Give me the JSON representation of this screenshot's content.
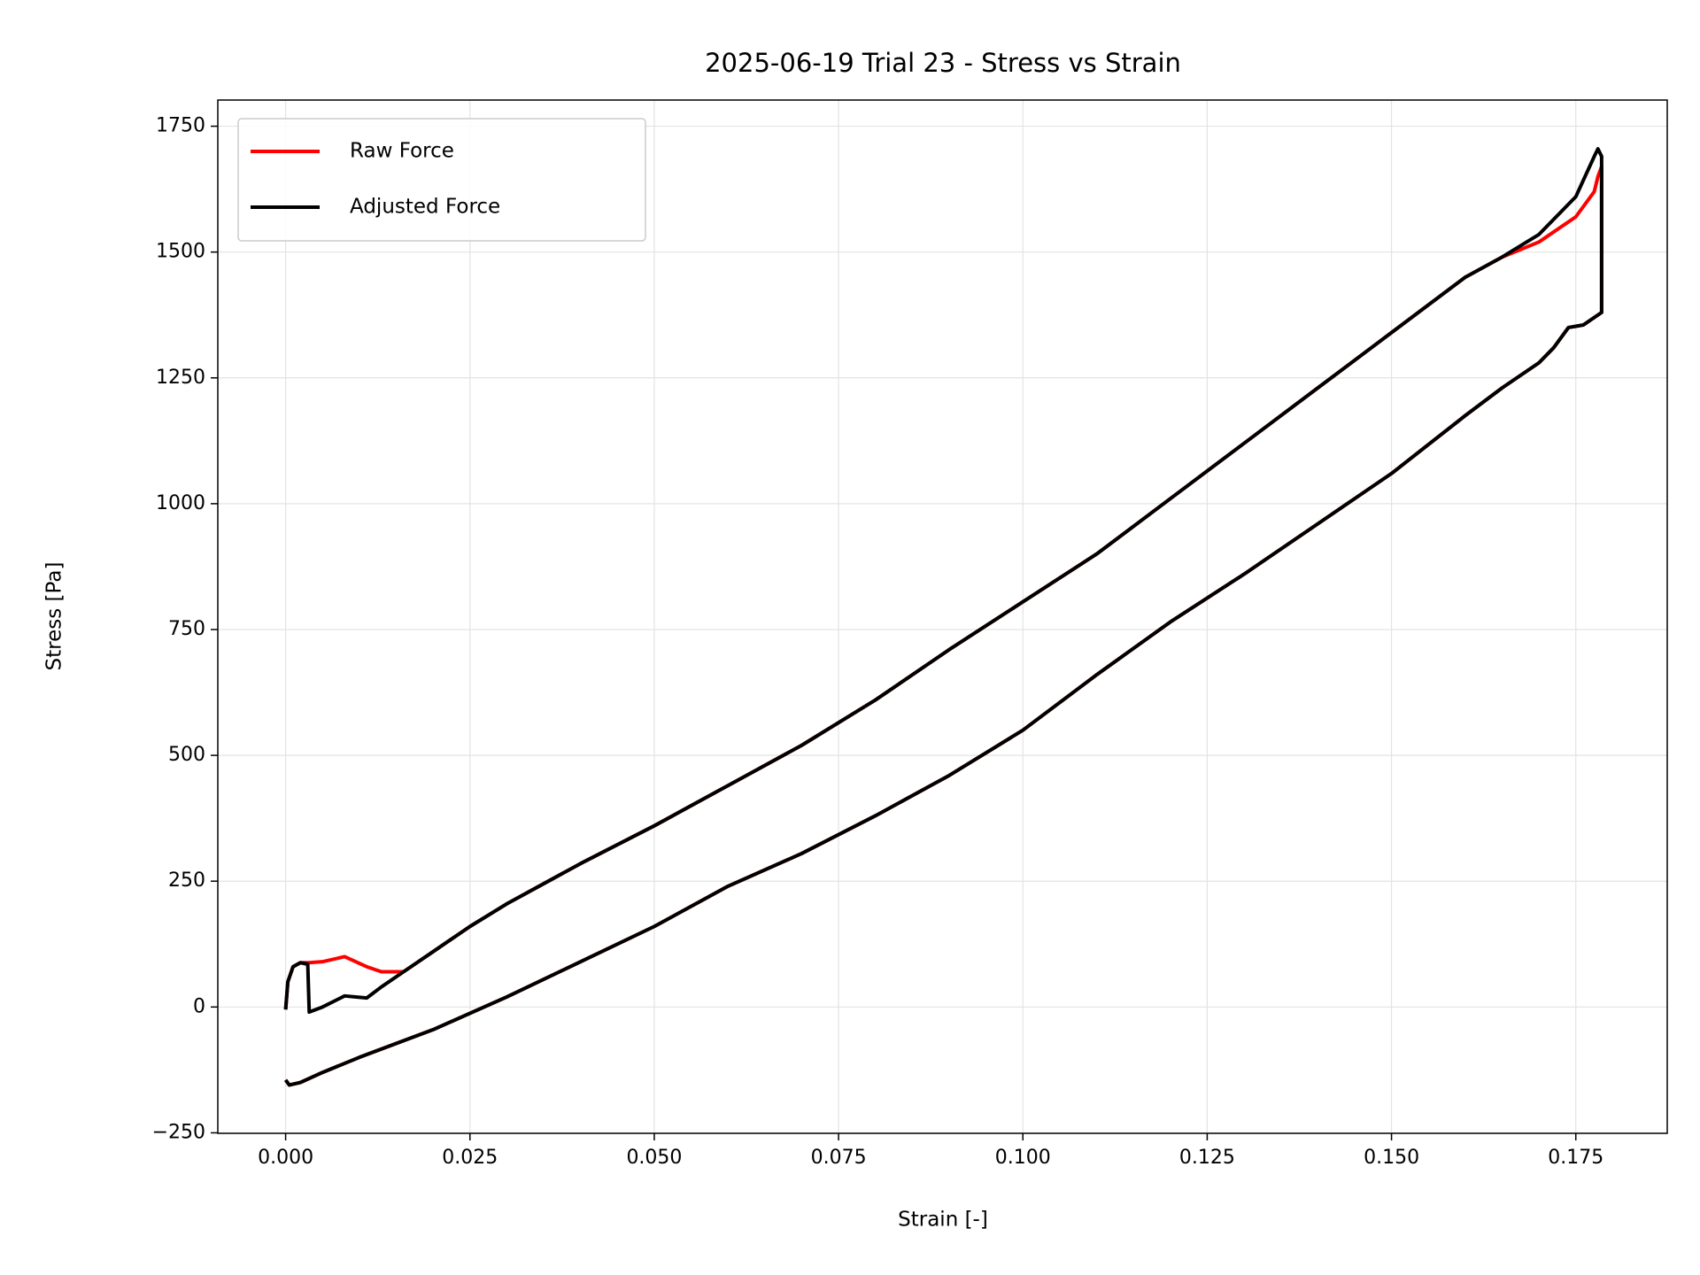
{
  "chart_data": {
    "type": "line",
    "title": "2025-06-19 Trial 23 - Stress vs Strain",
    "xlabel": "Strain [-]",
    "ylabel": "Stress [Pa]",
    "x": [
      0,
      0.0003,
      0.001,
      0.002,
      0.003,
      0.0032,
      0.005,
      0.008,
      0.011,
      0.013,
      0.016,
      0.02,
      0.025,
      0.03,
      0.035,
      0.04,
      0.05,
      0.06,
      0.07,
      0.08,
      0.09,
      0.1,
      0.11,
      0.12,
      0.13,
      0.14,
      0.15,
      0.16,
      0.165,
      0.17,
      0.175,
      0.1775,
      0.178,
      0.1785,
      0.1785,
      0.178,
      0.176,
      0.174,
      0.172,
      0.17,
      0.165,
      0.16,
      0.15,
      0.14,
      0.13,
      0.12,
      0.11,
      0.1,
      0.09,
      0.08,
      0.07,
      0.06,
      0.05,
      0.04,
      0.03,
      0.02,
      0.01,
      0.005,
      0.002,
      0.0005,
      0
    ],
    "series": [
      {
        "name": "Raw Force",
        "color": "#ff0000",
        "values": [
          -5,
          50,
          80,
          88,
          88,
          88,
          90,
          100,
          80,
          70,
          70,
          110,
          160,
          205,
          245,
          285,
          360,
          440,
          520,
          610,
          710,
          805,
          900,
          1010,
          1120,
          1230,
          1340,
          1450,
          1490,
          1520,
          1570,
          1620,
          1650,
          1670,
          1380,
          1375,
          1355,
          1350,
          1310,
          1280,
          1230,
          1175,
          1060,
          960,
          860,
          765,
          660,
          550,
          460,
          380,
          305,
          240,
          160,
          90,
          20,
          -45,
          -100,
          -130,
          -150,
          -155,
          -145
        ]
      },
      {
        "name": "Adjusted Force",
        "color": "#000000",
        "values": [
          -5,
          50,
          80,
          88,
          85,
          -10,
          0,
          22,
          18,
          40,
          70,
          110,
          160,
          205,
          245,
          285,
          360,
          440,
          520,
          610,
          710,
          805,
          900,
          1010,
          1120,
          1230,
          1340,
          1450,
          1490,
          1535,
          1610,
          1690,
          1705,
          1690,
          1380,
          1375,
          1355,
          1350,
          1310,
          1280,
          1230,
          1175,
          1060,
          960,
          860,
          765,
          660,
          550,
          460,
          380,
          305,
          240,
          160,
          90,
          20,
          -45,
          -100,
          -130,
          -150,
          -155,
          -145
        ]
      }
    ],
    "xlim": [
      -0.0092,
      0.1874
    ],
    "ylim": [
      -251,
      1802
    ],
    "xticks": [
      {
        "value": 0,
        "label": "0.000"
      },
      {
        "value": 0.025,
        "label": "0.025"
      },
      {
        "value": 0.05,
        "label": "0.050"
      },
      {
        "value": 0.075,
        "label": "0.075"
      },
      {
        "value": 0.1,
        "label": "0.100"
      },
      {
        "value": 0.125,
        "label": "0.125"
      },
      {
        "value": 0.15,
        "label": "0.150"
      },
      {
        "value": 0.175,
        "label": "0.175"
      }
    ],
    "yticks": [
      {
        "value": -250,
        "label": "−250"
      },
      0,
      250,
      500,
      750,
      1000,
      1250,
      1500,
      1750
    ],
    "grid": true,
    "legend": "upper left"
  }
}
